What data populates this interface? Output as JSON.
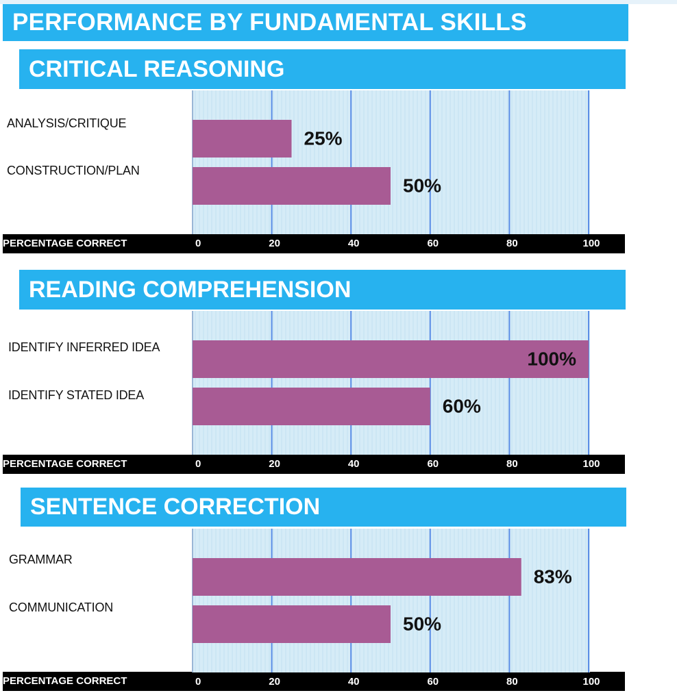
{
  "title": "PERFORMANCE BY FUNDAMENTAL SKILLS",
  "colors": {
    "header": "#27b2ef",
    "bar": "#a85b94",
    "plot_bg": "#d6ecf7",
    "gridline": "#5b8ee6",
    "axis_band": "#000000"
  },
  "chart_data": [
    {
      "type": "bar",
      "orientation": "horizontal",
      "title": "CRITICAL REASONING",
      "categories": [
        "ANALYSIS/CRITIQUE",
        "CONSTRUCTION/PLAN"
      ],
      "values": [
        25,
        50
      ],
      "data_labels": [
        "25%",
        "50%"
      ],
      "xlabel": "PERCENTAGE CORRECT",
      "xlim": [
        0,
        100
      ],
      "xticks": [
        "0",
        "20",
        "40",
        "60",
        "80",
        "100"
      ],
      "grid": true
    },
    {
      "type": "bar",
      "orientation": "horizontal",
      "title": "READING COMPREHENSION",
      "categories": [
        "IDENTIFY INFERRED IDEA",
        "IDENTIFY STATED IDEA"
      ],
      "values": [
        100,
        60
      ],
      "data_labels": [
        "100%",
        "60%"
      ],
      "xlabel": "PERCENTAGE CORRECT",
      "xlim": [
        0,
        100
      ],
      "xticks": [
        "0",
        "20",
        "40",
        "60",
        "80",
        "100"
      ],
      "grid": true
    },
    {
      "type": "bar",
      "orientation": "horizontal",
      "title": "SENTENCE CORRECTION",
      "categories": [
        "GRAMMAR",
        "COMMUNICATION"
      ],
      "values": [
        83,
        50
      ],
      "data_labels": [
        "83%",
        "50%"
      ],
      "xlabel": "PERCENTAGE CORRECT",
      "xlim": [
        0,
        100
      ],
      "xticks": [
        "0",
        "20",
        "40",
        "60",
        "80",
        "100"
      ],
      "grid": true
    }
  ]
}
